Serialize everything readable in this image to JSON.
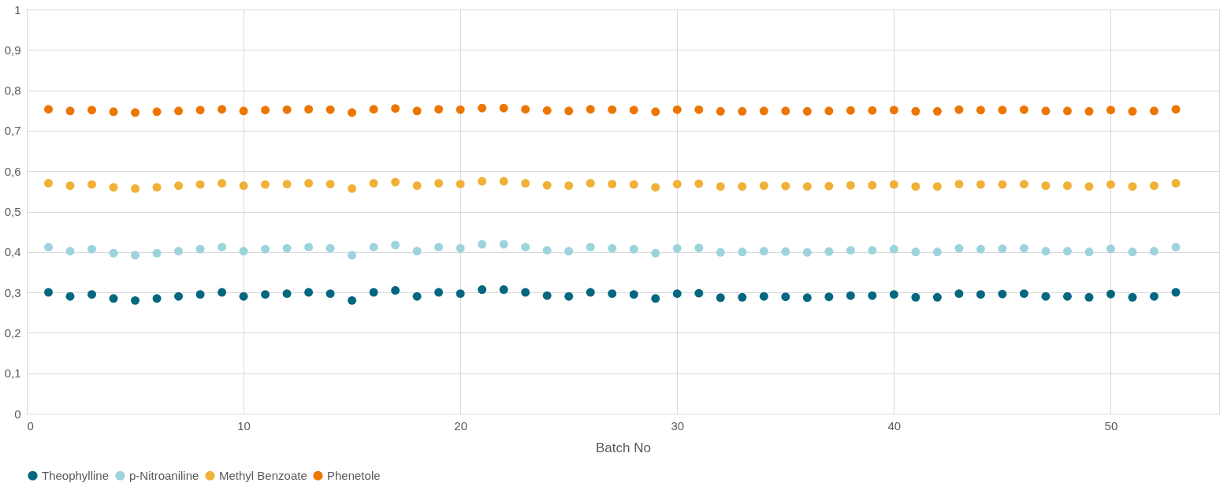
{
  "chart_data": {
    "type": "scatter",
    "xlabel": "Batch No",
    "x": [
      1,
      2,
      3,
      4,
      5,
      6,
      7,
      8,
      9,
      10,
      11,
      12,
      13,
      14,
      15,
      16,
      17,
      18,
      19,
      20,
      21,
      22,
      23,
      24,
      25,
      26,
      27,
      28,
      29,
      30,
      31,
      32,
      33,
      34,
      35,
      36,
      37,
      38,
      39,
      40,
      41,
      42,
      43,
      44,
      45,
      46,
      47,
      48,
      49,
      50,
      51,
      52,
      53
    ],
    "series": [
      {
        "name": "Theophylline",
        "color": "#03677f",
        "values": [
          0.3,
          0.29,
          0.295,
          0.285,
          0.28,
          0.285,
          0.29,
          0.295,
          0.3,
          0.29,
          0.295,
          0.297,
          0.3,
          0.297,
          0.28,
          0.3,
          0.305,
          0.29,
          0.3,
          0.297,
          0.307,
          0.307,
          0.3,
          0.292,
          0.29,
          0.3,
          0.297,
          0.295,
          0.285,
          0.297,
          0.298,
          0.287,
          0.288,
          0.29,
          0.289,
          0.287,
          0.289,
          0.292,
          0.292,
          0.295,
          0.288,
          0.288,
          0.297,
          0.295,
          0.296,
          0.297,
          0.29,
          0.29,
          0.288,
          0.296,
          0.288,
          0.29,
          0.3
        ]
      },
      {
        "name": "p-Nitroaniline",
        "color": "#9dd3dc",
        "values": [
          0.412,
          0.402,
          0.407,
          0.397,
          0.392,
          0.397,
          0.402,
          0.407,
          0.412,
          0.402,
          0.407,
          0.409,
          0.412,
          0.409,
          0.392,
          0.412,
          0.417,
          0.402,
          0.412,
          0.409,
          0.419,
          0.419,
          0.412,
          0.404,
          0.402,
          0.412,
          0.409,
          0.407,
          0.397,
          0.409,
          0.41,
          0.399,
          0.4,
          0.402,
          0.401,
          0.399,
          0.401,
          0.404,
          0.404,
          0.407,
          0.4,
          0.4,
          0.409,
          0.407,
          0.408,
          0.409,
          0.402,
          0.402,
          0.4,
          0.408,
          0.4,
          0.402,
          0.412
        ]
      },
      {
        "name": "Methyl Benzoate",
        "color": "#f0b136",
        "values": [
          0.57,
          0.564,
          0.567,
          0.56,
          0.557,
          0.56,
          0.564,
          0.567,
          0.57,
          0.564,
          0.567,
          0.568,
          0.57,
          0.568,
          0.557,
          0.57,
          0.573,
          0.564,
          0.57,
          0.568,
          0.575,
          0.575,
          0.57,
          0.565,
          0.564,
          0.57,
          0.568,
          0.567,
          0.56,
          0.568,
          0.569,
          0.562,
          0.562,
          0.564,
          0.563,
          0.562,
          0.563,
          0.565,
          0.565,
          0.567,
          0.562,
          0.562,
          0.568,
          0.567,
          0.567,
          0.568,
          0.564,
          0.564,
          0.562,
          0.567,
          0.562,
          0.564,
          0.57
        ]
      },
      {
        "name": "Phenetole",
        "color": "#ec7601",
        "values": [
          0.753,
          0.749,
          0.751,
          0.747,
          0.745,
          0.747,
          0.749,
          0.751,
          0.753,
          0.749,
          0.751,
          0.752,
          0.753,
          0.752,
          0.745,
          0.753,
          0.755,
          0.749,
          0.753,
          0.752,
          0.756,
          0.756,
          0.753,
          0.75,
          0.749,
          0.753,
          0.752,
          0.751,
          0.747,
          0.752,
          0.752,
          0.748,
          0.748,
          0.749,
          0.749,
          0.748,
          0.749,
          0.75,
          0.75,
          0.751,
          0.748,
          0.748,
          0.752,
          0.751,
          0.751,
          0.752,
          0.749,
          0.749,
          0.748,
          0.751,
          0.748,
          0.749,
          0.753
        ]
      }
    ],
    "xlim": [
      0,
      55
    ],
    "xticks": [
      0,
      10,
      20,
      30,
      40,
      50
    ],
    "ylim": [
      0,
      1
    ],
    "yticks": [
      0,
      {
        "value": 0.1,
        "label": "0,1"
      },
      {
        "value": 0.2,
        "label": "0,2"
      },
      {
        "value": 0.3,
        "label": "0,3"
      },
      {
        "value": 0.4,
        "label": "0,4"
      },
      {
        "value": 0.5,
        "label": "0,5"
      },
      {
        "value": 0.6,
        "label": "0,6"
      },
      {
        "value": 0.7,
        "label": "0,7"
      },
      {
        "value": 0.8,
        "label": "0,8"
      },
      {
        "value": 0.9,
        "label": "0,9"
      },
      1
    ],
    "grid": true,
    "legend": "bottom",
    "marker": "circle"
  }
}
